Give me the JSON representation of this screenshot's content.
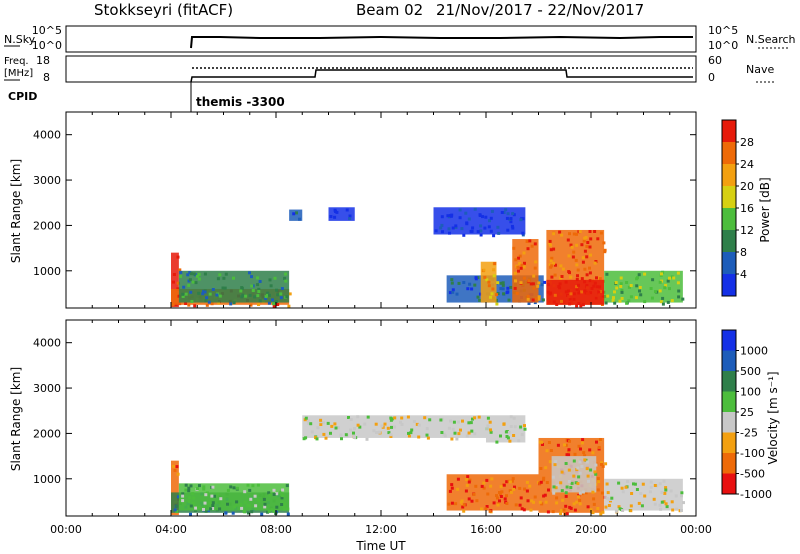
{
  "header": {
    "station": "Stokkseyri (fitACF)",
    "beam": "Beam 02",
    "date_range": "21/Nov/2017 - 22/Nov/2017"
  },
  "summary_panels": {
    "nsky_label": "N.Sky",
    "nsky_ticks": [
      "10^5",
      "10^0"
    ],
    "nsearch_label": "N.Search",
    "nsearch_ticks": [
      "10^5",
      "10^0"
    ],
    "freq_label_1": "Freq.",
    "freq_label_2": "[MHz]",
    "freq_ticks": [
      "18",
      "8"
    ],
    "nave_label": "Nave",
    "nave_ticks": [
      "60",
      "0"
    ],
    "cpid_label": "CPID",
    "cpid_value": "themis -3300"
  },
  "colors": {
    "power": [
      "#1430e6",
      "#1d5dba",
      "#2f7f4a",
      "#4cbd3c",
      "#d6d012",
      "#f3a010",
      "#ee6a08",
      "#e61a0a"
    ],
    "velocity": [
      "#e81010",
      "#ee6a08",
      "#f3a010",
      "#c8c8c8",
      "#4cbd3c",
      "#2f7f4a",
      "#1d5dba",
      "#1430e6"
    ]
  },
  "chart_data": [
    {
      "type": "heatmap",
      "panel": "power",
      "ylabel": "Slant Range [km]",
      "y_ticks": [
        "1000",
        "2000",
        "3000",
        "4000"
      ],
      "ylim": [
        180,
        4500
      ],
      "xlim": [
        0,
        24
      ],
      "x_tick_labels": [
        "00:00",
        "04:00",
        "08:00",
        "12:00",
        "16:00",
        "20:00",
        "00:00"
      ],
      "x_tick_hours": [
        0,
        4,
        8,
        12,
        16,
        20,
        24
      ],
      "colorbar_label": "Power [dB]",
      "colorbar_ticks": [
        "28",
        "24",
        "20",
        "16",
        "12",
        "8",
        "4"
      ],
      "regions": [
        {
          "t0": 4.0,
          "t1": 4.3,
          "r0": 200,
          "r1": 1400,
          "level": 7
        },
        {
          "t0": 4.0,
          "t1": 8.5,
          "r0": 250,
          "r1": 600,
          "level": 6
        },
        {
          "t0": 4.3,
          "t1": 8.5,
          "r0": 300,
          "r1": 1000,
          "level": 2
        },
        {
          "t0": 14.5,
          "t1": 18.2,
          "r0": 300,
          "r1": 900,
          "level": 1
        },
        {
          "t0": 15.8,
          "t1": 16.4,
          "r0": 300,
          "r1": 1200,
          "level": 5
        },
        {
          "t0": 17.0,
          "t1": 18.0,
          "r0": 300,
          "r1": 1700,
          "level": 6
        },
        {
          "t0": 18.3,
          "t1": 20.5,
          "r0": 250,
          "r1": 1900,
          "level": 6
        },
        {
          "t0": 18.3,
          "t1": 20.5,
          "r0": 250,
          "r1": 800,
          "level": 7
        },
        {
          "t0": 20.5,
          "t1": 23.5,
          "r0": 300,
          "r1": 1000,
          "level": 3
        },
        {
          "t0": 8.5,
          "t1": 9.0,
          "r0": 2100,
          "r1": 2350,
          "level": 1
        },
        {
          "t0": 10.0,
          "t1": 11.0,
          "r0": 2100,
          "r1": 2400,
          "level": 0
        },
        {
          "t0": 14.0,
          "t1": 17.5,
          "r0": 1800,
          "r1": 2400,
          "level": 0
        }
      ]
    },
    {
      "type": "heatmap",
      "panel": "velocity",
      "ylabel": "Slant Range [km]",
      "y_ticks": [
        "1000",
        "2000",
        "3000",
        "4000"
      ],
      "ylim": [
        180,
        4500
      ],
      "xlim": [
        0,
        24
      ],
      "x_tick_labels": [
        "00:00",
        "04:00",
        "08:00",
        "12:00",
        "16:00",
        "20:00",
        "00:00"
      ],
      "x_tick_hours": [
        0,
        4,
        8,
        12,
        16,
        20,
        24
      ],
      "xlabel": "Time UT",
      "colorbar_label": "Velocity [m s⁻¹]",
      "colorbar_ticks": [
        "1000",
        "500",
        "100",
        "25",
        "-25",
        "-100",
        "-500",
        "-1000"
      ],
      "regions": [
        {
          "t0": 4.0,
          "t1": 4.3,
          "r0": 200,
          "r1": 1400,
          "level": 1
        },
        {
          "t0": 4.0,
          "t1": 8.5,
          "r0": 250,
          "r1": 700,
          "level": 5
        },
        {
          "t0": 4.3,
          "t1": 8.5,
          "r0": 300,
          "r1": 900,
          "level": 4
        },
        {
          "t0": 14.5,
          "t1": 18.0,
          "r0": 300,
          "r1": 1100,
          "level": 1
        },
        {
          "t0": 18.0,
          "t1": 20.5,
          "r0": 250,
          "r1": 1900,
          "level": 1
        },
        {
          "t0": 18.5,
          "t1": 20.2,
          "r0": 700,
          "r1": 1500,
          "level": 3
        },
        {
          "t0": 20.5,
          "t1": 23.5,
          "r0": 300,
          "r1": 1000,
          "level": 3
        },
        {
          "t0": 9.0,
          "t1": 16.0,
          "r0": 1900,
          "r1": 2400,
          "level": 3
        },
        {
          "t0": 16.0,
          "t1": 17.5,
          "r0": 1800,
          "r1": 2400,
          "level": 3
        }
      ]
    }
  ]
}
